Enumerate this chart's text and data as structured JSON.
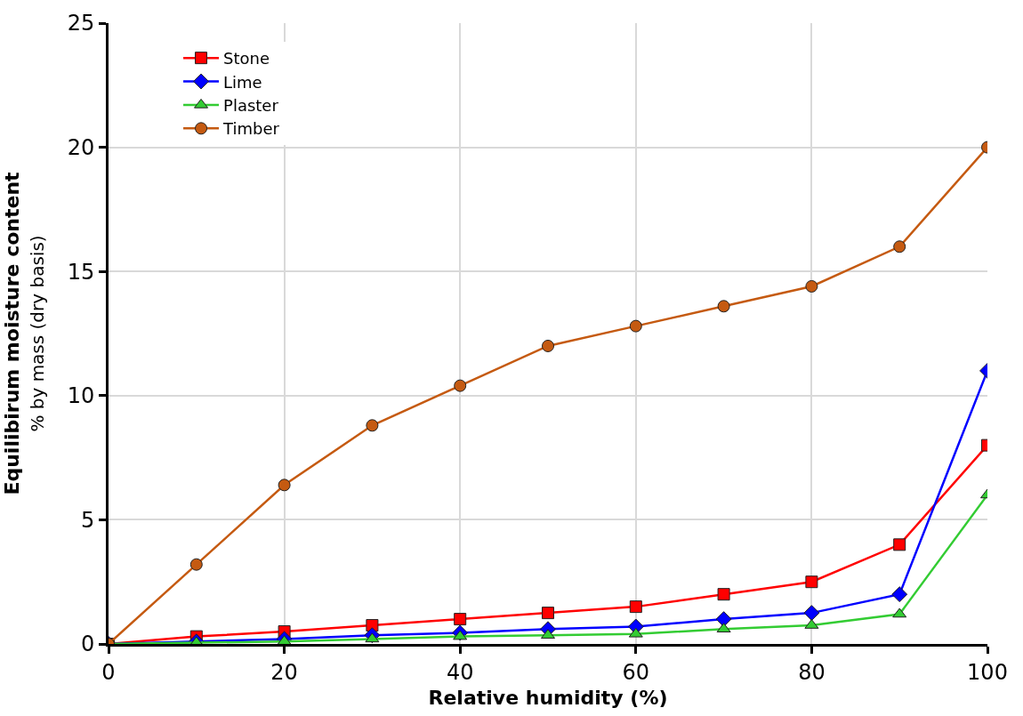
{
  "chart_data": {
    "type": "line",
    "xlabel": "Relative humidity (%)",
    "ylabel": "Equilibirum moisture content\n% by mass (dry basis)",
    "x": [
      0,
      10,
      20,
      30,
      40,
      50,
      60,
      70,
      80,
      90,
      100
    ],
    "series": [
      {
        "name": "Stone",
        "color": "#ff0000",
        "marker": "square",
        "values": [
          0,
          0.3,
          0.5,
          0.75,
          1.0,
          1.25,
          1.5,
          2.0,
          2.5,
          4.0,
          8.0
        ]
      },
      {
        "name": "Lime",
        "color": "#0000ff",
        "marker": "diamond",
        "values": [
          0,
          0.1,
          0.2,
          0.35,
          0.45,
          0.6,
          0.7,
          1.0,
          1.25,
          2.0,
          11.0
        ]
      },
      {
        "name": "Plaster",
        "color": "#33cc33",
        "marker": "triangle",
        "values": [
          0,
          0.05,
          0.1,
          0.2,
          0.3,
          0.35,
          0.4,
          0.6,
          0.75,
          1.2,
          6.0
        ]
      },
      {
        "name": "Timber",
        "color": "#c55a11",
        "marker": "circle",
        "values": [
          0,
          3.2,
          6.4,
          8.8,
          10.4,
          12.0,
          12.8,
          13.6,
          14.4,
          16.0,
          20.0
        ]
      }
    ],
    "xlim": [
      0,
      100
    ],
    "xticks": [
      0,
      20,
      40,
      60,
      80,
      100
    ],
    "ylim": [
      0,
      25
    ],
    "yticks": [
      0,
      5,
      10,
      15,
      20,
      25
    ],
    "grid": true,
    "legend": "top left"
  }
}
